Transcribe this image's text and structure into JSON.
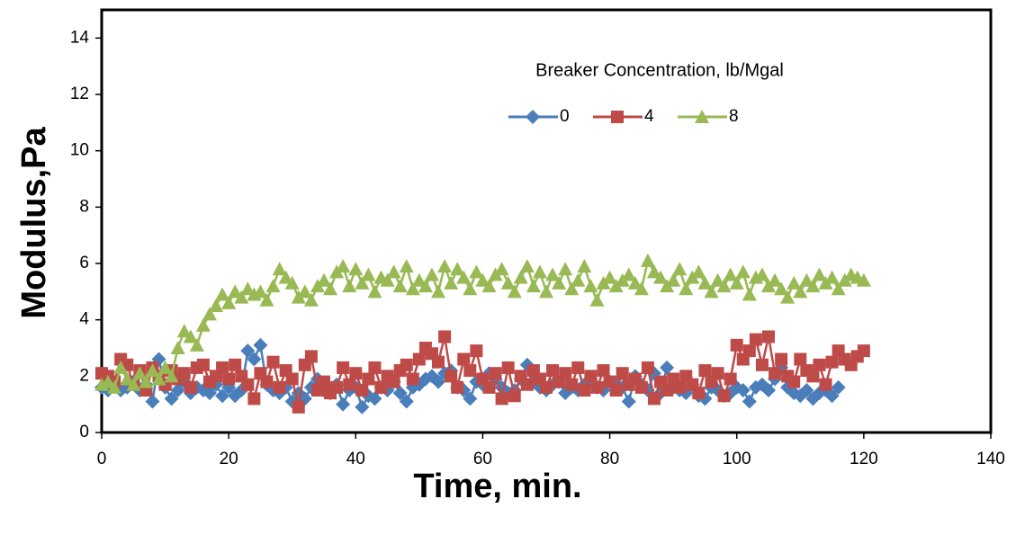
{
  "chart_data": {
    "type": "line",
    "y_label": "Modulus,Pa",
    "x_label": "Time, min.",
    "legend_title": "Breaker Concentration, lb/Mgal",
    "xlim": [
      0,
      140
    ],
    "xticks": [
      0,
      20,
      40,
      60,
      80,
      100,
      120,
      140
    ],
    "ylim": [
      0,
      15
    ],
    "yticks": [
      0,
      2,
      4,
      6,
      8,
      10,
      12,
      14
    ],
    "x": [
      0,
      1,
      2,
      3,
      4,
      5,
      6,
      7,
      8,
      9,
      10,
      11,
      12,
      13,
      14,
      15,
      16,
      17,
      18,
      19,
      20,
      21,
      22,
      23,
      24,
      25,
      26,
      27,
      28,
      29,
      30,
      31,
      32,
      33,
      34,
      35,
      36,
      37,
      38,
      39,
      40,
      41,
      42,
      43,
      44,
      45,
      46,
      47,
      48,
      49,
      50,
      51,
      52,
      53,
      54,
      55,
      56,
      57,
      58,
      59,
      60,
      61,
      62,
      63,
      64,
      65,
      66,
      67,
      68,
      69,
      70,
      71,
      72,
      73,
      74,
      75,
      76,
      77,
      78,
      79,
      80,
      81,
      82,
      83,
      84,
      85,
      86,
      87,
      88,
      89,
      90,
      91,
      92,
      93,
      94,
      95,
      96,
      97,
      98,
      99,
      100,
      101,
      102,
      103,
      104,
      105,
      106,
      107,
      108,
      109,
      110,
      111,
      112,
      113,
      114,
      115,
      116,
      117,
      118,
      119,
      120
    ],
    "series": [
      {
        "name": "0",
        "color": "#4a7ebb",
        "marker": "diamond",
        "values": [
          1.6,
          1.5,
          1.7,
          1.5,
          1.6,
          1.8,
          1.5,
          1.7,
          1.1,
          2.6,
          1.6,
          1.2,
          1.5,
          1.8,
          1.4,
          1.6,
          1.5,
          1.4,
          1.7,
          1.3,
          1.6,
          1.3,
          1.5,
          2.9,
          2.6,
          3.1,
          1.7,
          1.5,
          1.4,
          1.6,
          1.1,
          1.4,
          1.2,
          1.6,
          1.9,
          1.5,
          1.4,
          1.7,
          1.0,
          1.5,
          1.6,
          0.9,
          1.3,
          1.2,
          1.6,
          1.5,
          1.8,
          1.4,
          1.1,
          1.6,
          1.7,
          1.9,
          2.0,
          1.8,
          2.1,
          2.2,
          1.6,
          1.5,
          1.2,
          1.8,
          1.7,
          2.1,
          1.9,
          1.6,
          1.4,
          1.5,
          1.9,
          2.4,
          1.8,
          1.6,
          1.5,
          1.7,
          1.8,
          1.4,
          1.6,
          1.5,
          1.7,
          1.9,
          1.6,
          1.5,
          1.8,
          1.7,
          1.6,
          1.1,
          2.0,
          1.7,
          1.5,
          2.1,
          1.4,
          2.3,
          1.6,
          1.5,
          1.4,
          1.7,
          1.3,
          1.2,
          1.6,
          1.5,
          1.3,
          1.4,
          1.6,
          1.5,
          1.1,
          1.6,
          1.7,
          1.5,
          1.9,
          2.3,
          1.6,
          1.4,
          1.3,
          1.5,
          1.2,
          1.4,
          1.5,
          1.3,
          1.6,
          null,
          null,
          null,
          null
        ]
      },
      {
        "name": "4",
        "color": "#be4b48",
        "marker": "square",
        "values": [
          2.1,
          2.0,
          1.8,
          2.6,
          2.4,
          1.7,
          2.2,
          1.5,
          2.3,
          2.0,
          1.7,
          2.2,
          1.9,
          2.1,
          1.6,
          2.3,
          2.4,
          1.8,
          2.0,
          2.3,
          1.9,
          2.4,
          2.0,
          1.7,
          1.2,
          2.1,
          1.8,
          2.5,
          1.6,
          2.2,
          1.9,
          0.9,
          2.4,
          2.7,
          1.5,
          1.8,
          1.4,
          1.6,
          2.3,
          1.7,
          2.1,
          1.5,
          1.9,
          2.3,
          1.6,
          2.0,
          1.8,
          2.2,
          2.4,
          1.9,
          2.6,
          3.0,
          2.8,
          2.5,
          3.4,
          2.0,
          1.6,
          2.6,
          2.2,
          2.9,
          1.9,
          1.6,
          2.1,
          1.2,
          2.3,
          1.3,
          2.0,
          1.7,
          2.2,
          1.9,
          1.6,
          2.2,
          1.8,
          2.1,
          1.7,
          2.3,
          1.5,
          2.0,
          1.6,
          2.2,
          1.8,
          1.5,
          2.1,
          1.7,
          1.9,
          1.6,
          2.3,
          1.2,
          1.8,
          1.5,
          1.9,
          1.6,
          2.0,
          1.7,
          1.4,
          2.2,
          1.8,
          2.1,
          1.3,
          1.9,
          3.1,
          2.6,
          2.9,
          3.3,
          2.4,
          3.4,
          2.1,
          2.6,
          2.0,
          1.8,
          2.6,
          2.2,
          2.0,
          2.4,
          1.7,
          2.5,
          2.9,
          2.6,
          2.4,
          2.7,
          2.9
        ]
      },
      {
        "name": "8",
        "color": "#98b954",
        "marker": "triangle",
        "values": [
          1.7,
          1.8,
          1.6,
          2.3,
          1.9,
          1.7,
          2.1,
          1.8,
          2.2,
          1.9,
          2.3,
          2.0,
          3.0,
          3.6,
          3.4,
          3.1,
          3.8,
          4.2,
          4.5,
          4.9,
          4.6,
          5.0,
          4.8,
          5.1,
          4.9,
          5.0,
          4.7,
          5.2,
          5.8,
          5.5,
          5.3,
          4.8,
          5.0,
          4.7,
          5.2,
          5.4,
          5.1,
          5.7,
          5.9,
          5.2,
          5.8,
          5.3,
          5.6,
          5.0,
          5.5,
          5.4,
          5.7,
          5.2,
          5.9,
          5.1,
          5.4,
          5.2,
          5.6,
          5.0,
          5.9,
          5.3,
          5.8,
          5.5,
          5.1,
          5.7,
          5.4,
          5.2,
          5.6,
          5.8,
          5.3,
          5.0,
          5.5,
          5.9,
          5.2,
          5.7,
          5.0,
          5.6,
          5.3,
          5.8,
          5.1,
          5.4,
          5.9,
          5.2,
          4.7,
          5.3,
          5.5,
          5.2,
          5.4,
          5.6,
          5.3,
          5.1,
          6.1,
          5.7,
          5.5,
          5.2,
          5.4,
          5.8,
          5.1,
          5.5,
          5.7,
          5.3,
          5.0,
          5.4,
          5.2,
          5.6,
          5.3,
          5.7,
          4.9,
          5.5,
          5.6,
          5.2,
          5.4,
          5.1,
          4.8,
          5.3,
          5.0,
          5.4,
          5.2,
          5.6,
          5.3,
          5.5,
          5.1,
          5.4,
          5.6,
          5.5,
          5.4
        ]
      }
    ]
  }
}
